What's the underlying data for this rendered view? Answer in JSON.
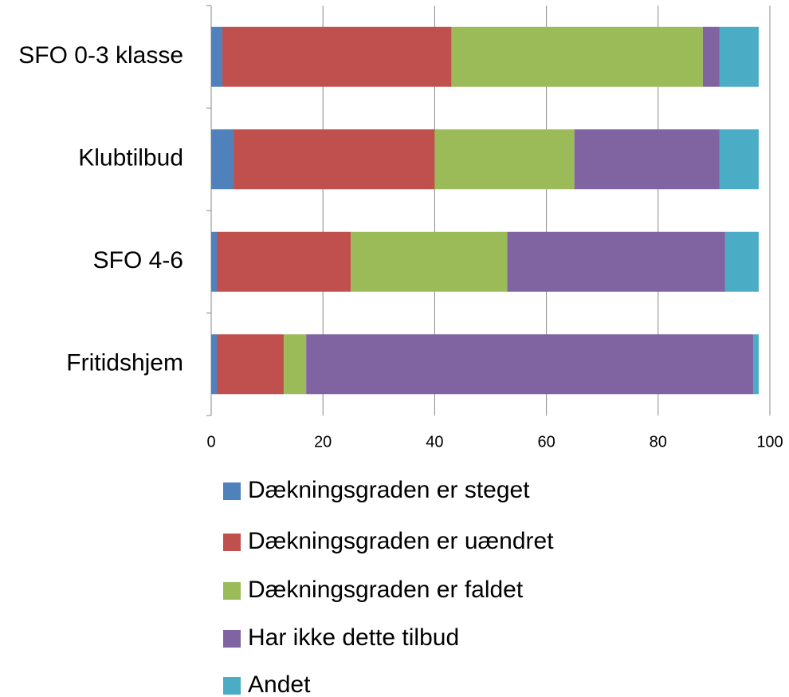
{
  "chart_data": {
    "type": "stacked-barh",
    "categories": [
      "SFO 0-3 klasse",
      "Klubtilbud",
      "SFO 4-6",
      "Fritidshjem"
    ],
    "series": [
      {
        "name": "Dækningsgraden er steget",
        "color": "#4f81bd",
        "values": [
          2,
          4,
          1,
          1
        ]
      },
      {
        "name": "Dækningsgraden er uændret",
        "color": "#c0504d",
        "values": [
          41,
          36,
          24,
          12
        ]
      },
      {
        "name": "Dækningsgraden er faldet",
        "color": "#9bbb59",
        "values": [
          45,
          25,
          28,
          4
        ]
      },
      {
        "name": "Har ikke dette tilbud",
        "color": "#8064a2",
        "values": [
          3,
          26,
          39,
          80
        ]
      },
      {
        "name": "Andet",
        "color": "#4bacc6",
        "values": [
          7,
          7,
          6,
          1
        ]
      }
    ],
    "xlim": [
      0,
      100
    ],
    "xticks": [
      0,
      20,
      40,
      60,
      80,
      100
    ],
    "grid": true,
    "legend": "bottom"
  }
}
